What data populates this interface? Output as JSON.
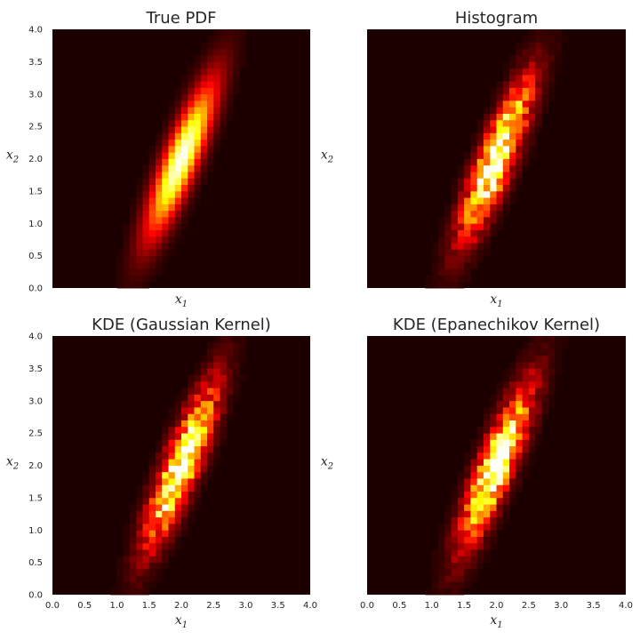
{
  "chart_data": [
    {
      "type": "heatmap",
      "title": "True PDF",
      "xlabel": "x_1",
      "ylabel": "x_2",
      "xlim": [
        0,
        4
      ],
      "ylim": [
        0,
        4
      ],
      "show_xticks": false,
      "show_yticks": true,
      "xticks": [
        "0.0",
        "0.5",
        "1.0",
        "1.5",
        "2.0",
        "2.5",
        "3.0",
        "3.5",
        "4.0"
      ],
      "yticks": [
        "0.0",
        "0.5",
        "1.0",
        "1.5",
        "2.0",
        "2.5",
        "3.0",
        "3.5",
        "4.0"
      ],
      "colormap": "hot",
      "grid": false,
      "noisy": false,
      "distribution": {
        "mean": [
          2.0,
          2.0
        ],
        "angle_deg": 68,
        "sigma_major": 0.85,
        "sigma_minor": 0.17
      }
    },
    {
      "type": "heatmap",
      "title": "Histogram",
      "xlabel": "x_1",
      "ylabel": "x_2",
      "xlim": [
        0,
        4
      ],
      "ylim": [
        0,
        4
      ],
      "show_xticks": false,
      "show_yticks": false,
      "xticks": [
        "0.0",
        "0.5",
        "1.0",
        "1.5",
        "2.0",
        "2.5",
        "3.0",
        "3.5",
        "4.0"
      ],
      "yticks": [
        "0.0",
        "0.5",
        "1.0",
        "1.5",
        "2.0",
        "2.5",
        "3.0",
        "3.5",
        "4.0"
      ],
      "colormap": "hot",
      "grid": false,
      "noisy": true,
      "distribution": {
        "mean": [
          2.0,
          2.0
        ],
        "angle_deg": 68,
        "sigma_major": 0.85,
        "sigma_minor": 0.17
      }
    },
    {
      "type": "heatmap",
      "title": "KDE (Gaussian Kernel)",
      "xlabel": "x_1",
      "ylabel": "x_2",
      "xlim": [
        0,
        4
      ],
      "ylim": [
        0,
        4
      ],
      "show_xticks": true,
      "show_yticks": true,
      "xticks": [
        "0.0",
        "0.5",
        "1.0",
        "1.5",
        "2.0",
        "2.5",
        "3.0",
        "3.5",
        "4.0"
      ],
      "yticks": [
        "0.0",
        "0.5",
        "1.0",
        "1.5",
        "2.0",
        "2.5",
        "3.0",
        "3.5",
        "4.0"
      ],
      "colormap": "hot",
      "grid": false,
      "noisy": true,
      "distribution": {
        "mean": [
          2.0,
          2.0
        ],
        "angle_deg": 68,
        "sigma_major": 0.85,
        "sigma_minor": 0.17
      }
    },
    {
      "type": "heatmap",
      "title": "KDE (Epanechikov Kernel)",
      "xlabel": "x_1",
      "ylabel": "x_2",
      "xlim": [
        0,
        4
      ],
      "ylim": [
        0,
        4
      ],
      "show_xticks": true,
      "show_yticks": false,
      "xticks": [
        "0.0",
        "0.5",
        "1.0",
        "1.5",
        "2.0",
        "2.5",
        "3.0",
        "3.5",
        "4.0"
      ],
      "yticks": [
        "0.0",
        "0.5",
        "1.0",
        "1.5",
        "2.0",
        "2.5",
        "3.0",
        "3.5",
        "4.0"
      ],
      "colormap": "hot",
      "grid": false,
      "noisy": true,
      "distribution": {
        "mean": [
          2.0,
          2.0
        ],
        "angle_deg": 68,
        "sigma_major": 0.85,
        "sigma_minor": 0.17
      }
    }
  ]
}
